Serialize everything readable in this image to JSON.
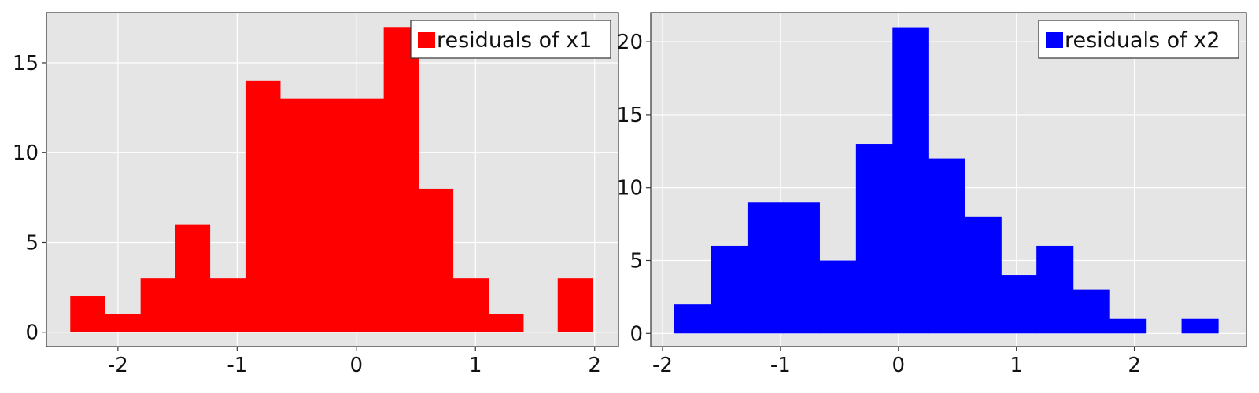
{
  "chart_data": [
    {
      "type": "bar",
      "subtype": "histogram",
      "legend": "residuals of x1",
      "legend_position": "top-right",
      "color": "#ff0000",
      "grid": true,
      "xlim": [
        -2.6,
        2.2
      ],
      "ylim": [
        -0.8,
        17.8
      ],
      "xticks": [
        -2,
        -1,
        0,
        1,
        2
      ],
      "yticks": [
        0,
        5,
        10,
        15
      ],
      "bins": [
        {
          "x0": -2.4,
          "x1": -2.11,
          "count": 2
        },
        {
          "x0": -2.11,
          "x1": -1.81,
          "count": 1
        },
        {
          "x0": -1.81,
          "x1": -1.52,
          "count": 3
        },
        {
          "x0": -1.52,
          "x1": -1.23,
          "count": 6
        },
        {
          "x0": -1.23,
          "x1": -0.93,
          "count": 3
        },
        {
          "x0": -0.93,
          "x1": -0.64,
          "count": 14
        },
        {
          "x0": -0.64,
          "x1": -0.35,
          "count": 13
        },
        {
          "x0": -0.35,
          "x1": -0.06,
          "count": 13
        },
        {
          "x0": -0.06,
          "x1": 0.23,
          "count": 13
        },
        {
          "x0": 0.23,
          "x1": 0.52,
          "count": 17
        },
        {
          "x0": 0.52,
          "x1": 0.81,
          "count": 8
        },
        {
          "x0": 0.81,
          "x1": 1.11,
          "count": 3
        },
        {
          "x0": 1.11,
          "x1": 1.4,
          "count": 1
        },
        {
          "x0": 1.4,
          "x1": 1.69,
          "count": 0
        },
        {
          "x0": 1.69,
          "x1": 1.98,
          "count": 3
        }
      ]
    },
    {
      "type": "bar",
      "subtype": "histogram",
      "legend": "residuals of x2",
      "legend_position": "top-right",
      "color": "#0000ff",
      "grid": true,
      "xlim": [
        -2.1,
        2.95
      ],
      "ylim": [
        -0.9,
        22.0
      ],
      "xticks": [
        -2,
        -1,
        0,
        1,
        2
      ],
      "yticks": [
        0,
        5,
        10,
        15,
        20
      ],
      "bins": [
        {
          "x0": -1.9,
          "x1": -1.59,
          "count": 2
        },
        {
          "x0": -1.59,
          "x1": -1.28,
          "count": 6
        },
        {
          "x0": -1.28,
          "x1": -0.98,
          "count": 9
        },
        {
          "x0": -0.98,
          "x1": -0.67,
          "count": 9
        },
        {
          "x0": -0.67,
          "x1": -0.36,
          "count": 5
        },
        {
          "x0": -0.36,
          "x1": -0.05,
          "count": 13
        },
        {
          "x0": -0.05,
          "x1": 0.25,
          "count": 21
        },
        {
          "x0": 0.25,
          "x1": 0.56,
          "count": 12
        },
        {
          "x0": 0.56,
          "x1": 0.87,
          "count": 8
        },
        {
          "x0": 0.87,
          "x1": 1.17,
          "count": 4
        },
        {
          "x0": 1.17,
          "x1": 1.48,
          "count": 6
        },
        {
          "x0": 1.48,
          "x1": 1.79,
          "count": 3
        },
        {
          "x0": 1.79,
          "x1": 2.1,
          "count": 1
        },
        {
          "x0": 2.1,
          "x1": 2.4,
          "count": 0
        },
        {
          "x0": 2.4,
          "x1": 2.71,
          "count": 1
        }
      ]
    }
  ]
}
